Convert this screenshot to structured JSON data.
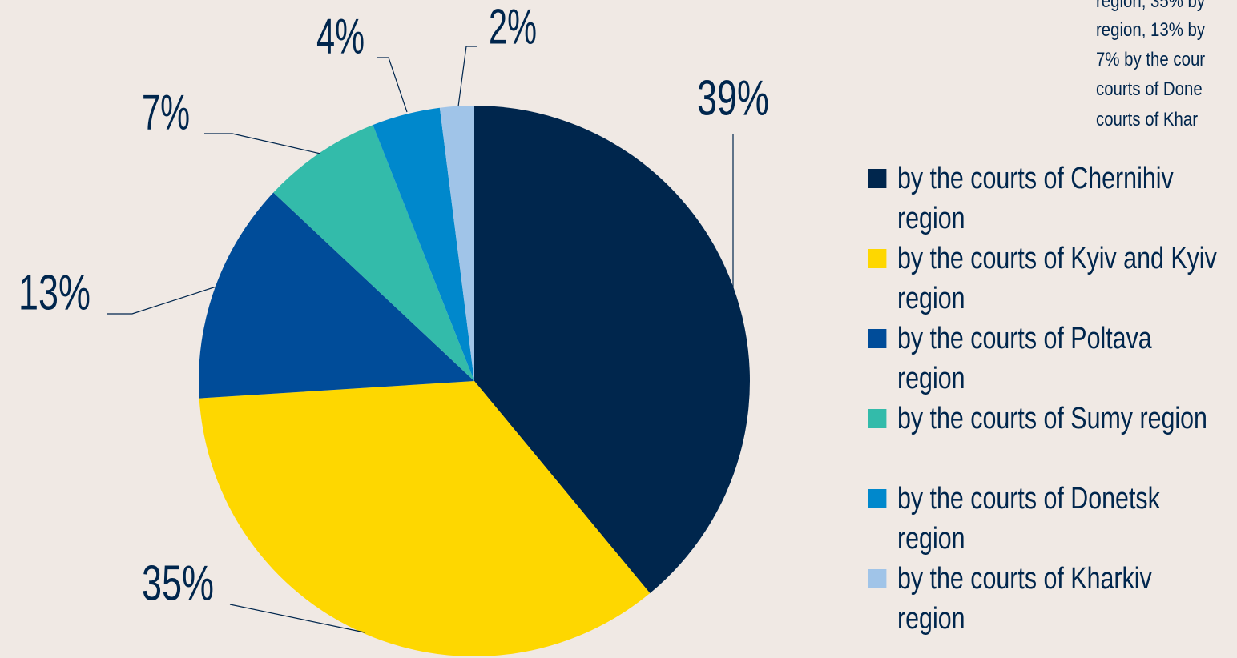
{
  "chart_data": {
    "type": "pie",
    "categories": [
      "by the courts of Chernihiv region",
      "by the courts of Kyiv and Kyiv region",
      "by the courts of Poltava region",
      "by the courts of Sumy region",
      "by the courts of Donetsk region",
      "by the courts of Kharkiv region"
    ],
    "values": [
      39,
      35,
      13,
      7,
      4,
      2
    ],
    "value_labels": [
      "39%",
      "35%",
      "13%",
      "7%",
      "4%",
      "2%"
    ],
    "colors": [
      "#00264d",
      "#fed700",
      "#004c99",
      "#33bbaa",
      "#0088cc",
      "#a0c4e8"
    ],
    "notes": [
      "region, 35% by",
      "region, 13% by",
      "7% by the cour",
      "courts of Done",
      "courts of Khar"
    ]
  }
}
